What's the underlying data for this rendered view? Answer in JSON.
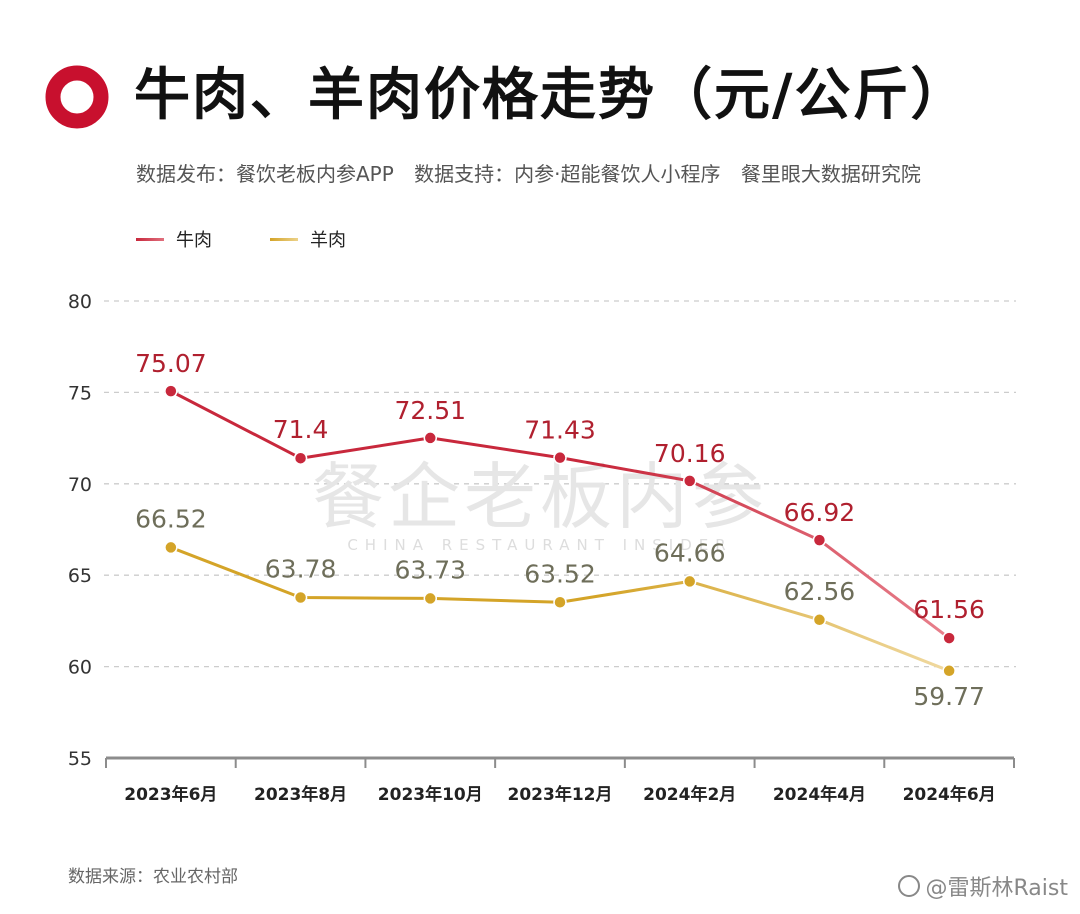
{
  "header": {
    "title": "牛肉、羊肉价格走势（元/公斤）",
    "subtitle_parts": [
      "数据发布：餐饮老板内参APP",
      "数据支持：内参·超能餐饮人小程序",
      "餐里眼大数据研究院"
    ]
  },
  "watermark": {
    "cn": "餐企老板内参",
    "en": "CHINA RESTAURANT INSIDER"
  },
  "footer": {
    "source": "数据来源：农业农村部",
    "weibo": "@雷斯林Raist"
  },
  "colors": {
    "beef": "#c8283c",
    "mutton": "#d4a428",
    "beef_label": "#b0202f",
    "mutton_label": "#6e6e5a",
    "brand": "#c8102e"
  },
  "chart_data": {
    "type": "line",
    "title": "牛肉、羊肉价格走势（元/公斤）",
    "xlabel": "",
    "ylabel": "",
    "categories": [
      "2023年6月",
      "2023年8月",
      "2023年10月",
      "2023年12月",
      "2024年2月",
      "2024年4月",
      "2024年6月"
    ],
    "ylim": [
      55,
      80
    ],
    "yticks": [
      55,
      60,
      65,
      70,
      75,
      80
    ],
    "grid": true,
    "legend_position": "top-left",
    "series": [
      {
        "name": "牛肉",
        "values": [
          75.07,
          71.4,
          72.51,
          71.43,
          70.16,
          66.92,
          61.56
        ],
        "labels": [
          "75.07",
          "71.4",
          "72.51",
          "71.43",
          "70.16",
          "66.92",
          "61.56"
        ]
      },
      {
        "name": "羊肉",
        "values": [
          66.52,
          63.78,
          63.73,
          63.52,
          64.66,
          62.56,
          59.77
        ],
        "labels": [
          "66.52",
          "63.78",
          "63.73",
          "63.52",
          "64.66",
          "62.56",
          "59.77"
        ]
      }
    ]
  }
}
